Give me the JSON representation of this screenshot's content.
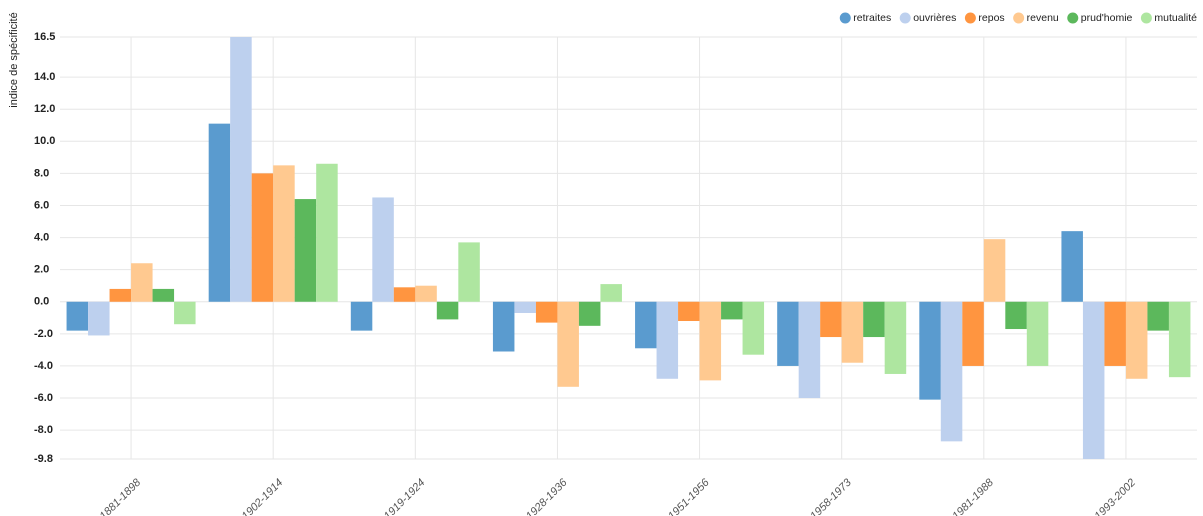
{
  "chart_data": {
    "type": "bar",
    "y_axis_label": "indice de spécificité",
    "categories": [
      "1881-1898",
      "1902-1914",
      "1919-1924",
      "1928-1936",
      "1951-1956",
      "1958-1973",
      "1981-1988",
      "1993-2002"
    ],
    "series": [
      {
        "name": "retraites",
        "color": "#5a9bcf",
        "values": [
          -1.8,
          11.1,
          -1.8,
          -3.1,
          -2.9,
          -4.0,
          -6.1,
          4.4
        ]
      },
      {
        "name": "ouvrières",
        "color": "#bdd0ee",
        "values": [
          -2.1,
          16.5,
          6.5,
          -0.7,
          -4.8,
          -6.0,
          -8.7,
          -9.8
        ]
      },
      {
        "name": "repos",
        "color": "#ff9540",
        "values": [
          0.8,
          8.0,
          0.9,
          -1.3,
          -1.2,
          -2.2,
          -4.0,
          -4.0
        ]
      },
      {
        "name": "revenu",
        "color": "#ffc990",
        "values": [
          2.4,
          8.5,
          1.0,
          -5.3,
          -4.9,
          -3.8,
          3.9,
          -4.8
        ]
      },
      {
        "name": "prud'homie",
        "color": "#5cb85c",
        "values": [
          0.8,
          6.4,
          -1.1,
          -1.5,
          -1.1,
          -2.2,
          -1.7,
          -1.8
        ]
      },
      {
        "name": "mutualité",
        "color": "#aee6a0",
        "values": [
          -1.4,
          8.6,
          3.7,
          1.1,
          -3.3,
          -4.5,
          -4.0,
          -4.7
        ]
      }
    ],
    "ylim": [
      -9.8,
      16.5
    ],
    "yticks": [
      16.5,
      {
        "value": 14,
        "label": "14.0"
      },
      {
        "value": 12,
        "label": "12.0"
      },
      {
        "value": 10,
        "label": "10.0"
      },
      {
        "value": 8,
        "label": "8.0"
      },
      {
        "value": 6,
        "label": "6.0"
      },
      {
        "value": 4,
        "label": "4.0"
      },
      {
        "value": 2,
        "label": "2.0"
      },
      {
        "value": 0,
        "label": "0.0"
      },
      {
        "value": -2,
        "label": "-2.0"
      },
      {
        "value": -4,
        "label": "-4.0"
      },
      {
        "value": -6,
        "label": "-6.0"
      },
      {
        "value": -8,
        "label": "-8.0"
      },
      -9.8
    ],
    "grid": true,
    "legend": "top-right"
  }
}
